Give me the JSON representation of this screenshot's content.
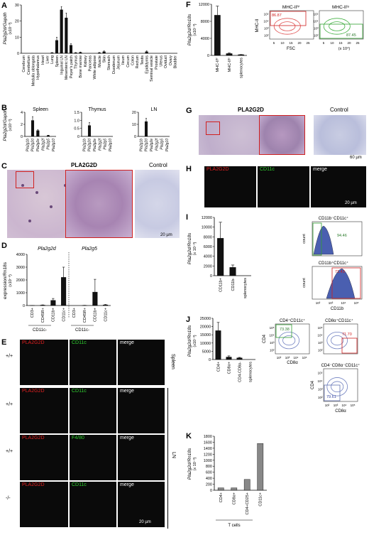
{
  "panels": {
    "A": {
      "label": "A",
      "ylabel": "Pla2g2d/Gapdh",
      "yunit": "(x10⁻³)",
      "yticks": [
        "0",
        "10",
        "20",
        "30"
      ],
      "categories": [
        "Cerebrum",
        "Cerebellum",
        "Medulla oblongata",
        "Hypothalamus",
        "Heart",
        "Liver",
        "Lung",
        "Spleen",
        "Inguinal LN",
        "Mesenteric LN",
        "Peyer's patch",
        "Thymus",
        "Bone marrow",
        "Kidney",
        "Pancreas",
        "White adipose",
        "Muscle",
        "Skin",
        "Stomach",
        "Duodenum",
        "Jejunum",
        "Ileum",
        "Cecum",
        "Colon",
        "Rectum",
        "Testis",
        "Epididymis",
        "Seminal vesicle",
        "Prostate",
        "Uterus",
        "Oviduct",
        "Ovary",
        "Bladder"
      ]
    },
    "B": {
      "label": "B",
      "ylabel": "Pla2g2d/Gapdh",
      "yunit": "(x10⁻²)",
      "subplots": [
        {
          "title": "Spleen",
          "yticks": [
            "0",
            "2",
            "4"
          ],
          "categories": [
            "Pla2g1b",
            "Pla2g2d",
            "Pla2g2e",
            "Pla2g2f",
            "Pla2g5",
            "Pla2g10"
          ]
        },
        {
          "title": "Thymus",
          "yticks": [
            "0",
            "0.5",
            "1.0",
            "1.5"
          ],
          "categories": [
            "Pla2g1b",
            "Pla2g2d",
            "Pla2g2e",
            "Pla2g2f",
            "Pla2g5",
            "Pla2g10"
          ]
        },
        {
          "title": "LN",
          "yticks": [
            "0",
            "10",
            "20"
          ],
          "categories": [
            "Pla2g1b",
            "Pla2g2d",
            "Pla2g2e",
            "Pla2g2f",
            "Pla2g5",
            "Pla2g10"
          ]
        }
      ]
    },
    "C": {
      "label": "C",
      "title": "PLA2G2D",
      "control": "Control",
      "scale": "20 µm"
    },
    "D": {
      "label": "D",
      "ylabel": "expression/Rn18s",
      "yunit": "(x10⁻⁸)",
      "yticks": [
        "0",
        "1000",
        "2000",
        "3000",
        "4000"
      ],
      "group1": "Pla2g2d",
      "group2": "Pla2g5",
      "categories": [
        "CD3+",
        "CD45R+",
        "CD11b+",
        "CD11c+",
        "CD3+",
        "CD45R+",
        "CD11b+",
        "CD11c+"
      ],
      "bracket1": "CD11c-",
      "bracket2": "CD11c-"
    },
    "E": {
      "label": "E",
      "rows": [
        {
          "genotype": "+/+",
          "c1": "PLA2G2D",
          "c2": "CD11c",
          "c3": "merge"
        },
        {
          "genotype": "+/+",
          "c1": "PLA2G2D",
          "c2": "CD11c",
          "c3": "merge"
        },
        {
          "genotype": "+/+",
          "c1": "PLA2G2D",
          "c2": "F4/80",
          "c3": "merge"
        },
        {
          "genotype": "-/-",
          "c1": "PLA2G2D",
          "c2": "CD11c",
          "c3": "merge"
        }
      ],
      "tissue1": "Spleen",
      "tissue2": "LN",
      "scale": "20 µm"
    },
    "F": {
      "label": "F",
      "ylabel": "Pla2g2d/Rn18s",
      "yunit": "(x10⁻³)",
      "yticks": [
        "0",
        "4000",
        "8000",
        "12000"
      ],
      "categories": [
        "MHC-IIʰⁱ",
        "MHC-IIˡᵒ",
        "splenocytes"
      ],
      "hist1_title": "MHC-IIʰⁱ",
      "hist1_value": "86.87",
      "hist2_title": "MHC-IIˡᵒ",
      "hist2_value": "87.45",
      "xaxis": "FSC",
      "xunit": "(x 10⁴)",
      "xticks": [
        "5",
        "10",
        "15",
        "20",
        "25"
      ],
      "yaxis": "MHC-II",
      "logticks": [
        "10²",
        "10³",
        "10⁴",
        "10⁵"
      ]
    },
    "G": {
      "label": "G",
      "title": "PLA2G2D",
      "control": "Control",
      "scale": "60 µm"
    },
    "H": {
      "label": "H",
      "c1": "PLA2G2D",
      "c2": "CD11c",
      "c3": "merge",
      "scale": "20 µm"
    },
    "I": {
      "label": "I",
      "ylabel": "Pla2g2d/Rn18s",
      "yunit": "(x 10⁻³)",
      "yticks": [
        "0",
        "2000",
        "4000",
        "6000",
        "8000",
        "10000",
        "12000"
      ],
      "categories": [
        "CD11b+",
        "CD11b-",
        "splenocytes"
      ],
      "hist1_title": "CD11b⁻CD11c⁺",
      "hist1_value": "94.46",
      "hist2_title": "CD11b⁺CD11c⁺",
      "hist2_value": "71.43",
      "xaxis": "CD11b",
      "yaxis": "count",
      "logticks": [
        "10²",
        "10³",
        "10⁴",
        "10⁵"
      ]
    },
    "J": {
      "label": "J",
      "ylabel": "Pla2g2d/Rn18s",
      "yunit": "(x10⁻³)",
      "yticks": [
        "0",
        "5000",
        "10000",
        "15000",
        "20000",
        "25000"
      ],
      "categories": [
        "CD4+",
        "CD8α+",
        "CD4-CD8α-",
        "splenocytes"
      ],
      "plot1_title": "CD4⁺CD11c⁺",
      "plot1_value": "73.38",
      "plot2_title": "CD8α⁺CD11c⁺",
      "plot2_value": "71.70",
      "plot3_title": "CD4⁻CD8α⁻CD11c⁺",
      "plot3_value": "79.61",
      "xaxis": "CD8α",
      "yaxis": "CD4",
      "logticks": [
        "10²",
        "10³",
        "10⁴",
        "10⁵"
      ]
    },
    "K": {
      "label": "K",
      "ylabel": "Pla2g2d/Rn18s",
      "yunit": "(x 10⁻³)",
      "yticks": [
        "0",
        "200",
        "400",
        "600",
        "800",
        "1000",
        "1200",
        "1400",
        "1600",
        "1800"
      ],
      "categories": [
        "CD4+",
        "CD8α+",
        "CD4+CD25+",
        "CD11c+"
      ],
      "bracket": "T cells"
    }
  },
  "chart_data": [
    {
      "panel": "A",
      "type": "bar",
      "ylim": [
        0,
        30
      ],
      "categories": [
        "Cerebrum",
        "Cerebellum",
        "Medulla oblongata",
        "Hypothalamus",
        "Heart",
        "Liver",
        "Lung",
        "Spleen",
        "Inguinal LN",
        "Mesenteric LN",
        "Peyer's patch",
        "Thymus",
        "Bone marrow",
        "Kidney",
        "Pancreas",
        "White adipose",
        "Muscle",
        "Skin",
        "Stomach",
        "Duodenum",
        "Jejunum",
        "Ileum",
        "Cecum",
        "Colon",
        "Rectum",
        "Testis",
        "Epididymis",
        "Seminal vesicle",
        "Prostate",
        "Uterus",
        "Oviduct",
        "Ovary",
        "Bladder"
      ],
      "values": [
        0,
        0,
        0,
        0,
        0,
        0,
        0.3,
        8,
        27,
        22,
        5,
        0.3,
        0.5,
        0,
        0,
        0,
        0.3,
        1,
        0,
        0,
        0,
        0,
        0,
        0,
        0,
        0,
        1,
        0,
        0,
        0,
        0,
        0,
        0
      ],
      "errors": [
        0,
        0,
        0,
        0,
        0,
        0,
        0.2,
        2,
        2,
        3,
        1,
        0.2,
        0.3,
        0,
        0,
        0,
        0.2,
        0.5,
        0,
        0,
        0,
        0,
        0,
        0,
        0,
        0,
        0.5,
        0,
        0,
        0,
        0,
        0,
        0
      ]
    },
    {
      "panel": "B-Spleen",
      "type": "bar",
      "ylim": [
        0,
        5
      ],
      "categories": [
        "Pla2g1b",
        "Pla2g2d",
        "Pla2g2e",
        "Pla2g2f",
        "Pla2g5",
        "Pla2g10"
      ],
      "values": [
        0,
        3.3,
        1.2,
        0,
        0.2,
        0
      ],
      "errors": [
        0,
        0.8,
        0.2,
        0,
        0.05,
        0
      ]
    },
    {
      "panel": "B-Thymus",
      "type": "bar",
      "ylim": [
        0,
        1.6
      ],
      "categories": [
        "Pla2g1b",
        "Pla2g2d",
        "Pla2g2e",
        "Pla2g2f",
        "Pla2g5",
        "Pla2g10"
      ],
      "values": [
        0,
        0.72,
        0,
        0,
        0,
        0
      ],
      "errors": [
        0,
        0.2,
        0,
        0,
        0,
        0
      ]
    },
    {
      "panel": "B-LN",
      "type": "bar",
      "ylim": [
        0,
        22
      ],
      "categories": [
        "Pla2g1b",
        "Pla2g2d",
        "Pla2g2e",
        "Pla2g2f",
        "Pla2g5",
        "Pla2g10"
      ],
      "values": [
        0,
        13.5,
        0,
        0,
        0,
        0
      ],
      "errors": [
        0,
        3,
        0,
        0,
        0,
        0
      ]
    },
    {
      "panel": "D",
      "type": "bar",
      "ylim": [
        0,
        4000
      ],
      "categories": [
        "CD3+",
        "CD45R+",
        "CD11b+",
        "CD11c+",
        "CD3+",
        "CD45R+",
        "CD11b+",
        "CD11c+"
      ],
      "values": [
        5,
        30,
        400,
        2200,
        0,
        10,
        1050,
        50
      ],
      "errors": [
        5,
        20,
        150,
        800,
        0,
        10,
        1000,
        30
      ]
    },
    {
      "panel": "F",
      "type": "bar",
      "ylim": [
        0,
        14000
      ],
      "categories": [
        "MHC-IIʰⁱ",
        "MHC-IIˡᵒ",
        "splenocytes"
      ],
      "values": [
        11000,
        500,
        200
      ],
      "errors": [
        2500,
        200,
        50
      ]
    },
    {
      "panel": "I",
      "type": "bar",
      "ylim": [
        0,
        12000
      ],
      "categories": [
        "CD11b+",
        "CD11b-",
        "splenocytes"
      ],
      "values": [
        7700,
        1700,
        0
      ],
      "errors": [
        3300,
        500,
        0
      ]
    },
    {
      "panel": "J",
      "type": "bar",
      "ylim": [
        0,
        25000
      ],
      "categories": [
        "CD4+",
        "CD8α+",
        "CD4-CD8α-",
        "splenocytes"
      ],
      "values": [
        17500,
        1500,
        1000,
        0
      ],
      "errors": [
        5000,
        700,
        300,
        0
      ]
    },
    {
      "panel": "K",
      "type": "bar",
      "ylim": [
        0,
        1800
      ],
      "categories": [
        "CD4+",
        "CD8α+",
        "CD4+CD25+",
        "CD11c+"
      ],
      "values": [
        80,
        80,
        360,
        1560
      ],
      "errors": [
        0,
        0,
        0,
        0
      ]
    }
  ]
}
